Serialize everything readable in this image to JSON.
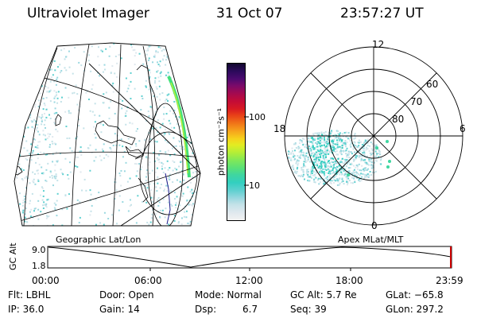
{
  "header": {
    "instrument": "Ultraviolet Imager",
    "date": "31 Oct 07",
    "time": "23:57:27 UT"
  },
  "colorbar": {
    "label": "photon cm⁻²s⁻¹",
    "ticks": [
      "100",
      "10"
    ],
    "colors": [
      "#f2f2f2",
      "#dfe8ee",
      "#c4e2e8",
      "#9ad8e0",
      "#5fd0d0",
      "#33cfc0",
      "#3fd6a0",
      "#57e07a",
      "#7ee85a",
      "#b2ee38",
      "#e2ec22",
      "#f6d21c",
      "#f6a31c",
      "#f07318",
      "#e84018",
      "#d81a22",
      "#c40c36",
      "#a40a50",
      "#7a0a6a",
      "#4e0a70",
      "#2c0a5c",
      "#12082e"
    ]
  },
  "polar": {
    "mlt_labels": {
      "top": "12",
      "left": "18",
      "right": "6",
      "bottom": "0"
    },
    "lat_labels": [
      "60",
      "70",
      "80"
    ]
  },
  "maps": {
    "left_label": "Geographic Lat/Lon",
    "right_label": "Apex MLat/MLT"
  },
  "altplot": {
    "axis_label": "GC Alt",
    "y_ticks": [
      "9.0",
      "1.8"
    ],
    "x_ticks": [
      "00:00",
      "06:00",
      "12:00",
      "18:00",
      "23:59"
    ],
    "marker_color": "#cc0000"
  },
  "footer": {
    "flt": "Flt: LBHL",
    "door": "Door: Open",
    "mode": "Mode: Normal",
    "gcalt": "GC Alt: 5.7 Re",
    "glat": "GLat: −65.8",
    "ip": "IP: 36.0",
    "gain": "Gain: 14",
    "dsp_label": "Dsp:",
    "dsp_value": "6.7",
    "seq": "Seq: 39",
    "glon": "GLon: 297.2"
  }
}
